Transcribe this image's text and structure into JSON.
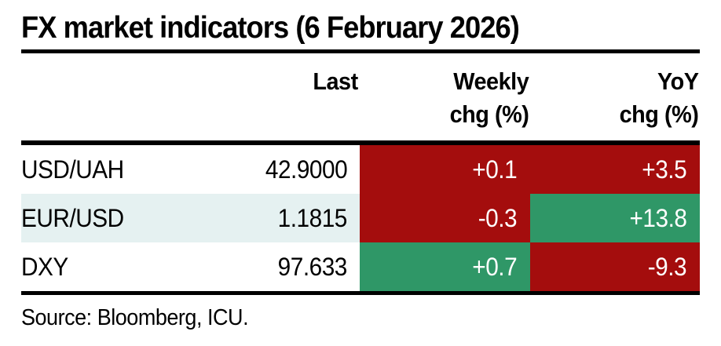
{
  "title": "FX market indicators (6 February 2026)",
  "header": {
    "last": "Last",
    "weekly_line1": "Weekly",
    "weekly_line2": "chg (%)",
    "yoy_line1": "YoY",
    "yoy_line2": "chg (%)"
  },
  "colors": {
    "red": "#A40D0D",
    "green": "#2F9767",
    "stripe": "#E5F1F1",
    "rule": "#000000",
    "text": "#000000",
    "cell_text": "#FFFFFF"
  },
  "chart_data": {
    "type": "table",
    "title": "FX market indicators (6 February 2026)",
    "columns": [
      "Last",
      "Weekly chg (%)",
      "YoY chg (%)"
    ],
    "rows": [
      {
        "indicator": "USD/UAH",
        "last": "42.9000",
        "weekly_chg_pct": "+0.1",
        "weekly_cell_color": "red",
        "yoy_chg_pct": "+3.5",
        "yoy_cell_color": "red"
      },
      {
        "indicator": "EUR/USD",
        "last": "1.1815",
        "weekly_chg_pct": "-0.3",
        "weekly_cell_color": "red",
        "yoy_chg_pct": "+13.8",
        "yoy_cell_color": "green"
      },
      {
        "indicator": "DXY",
        "last": "97.633",
        "weekly_chg_pct": "+0.7",
        "weekly_cell_color": "green",
        "yoy_chg_pct": "-9.3",
        "yoy_cell_color": "red"
      }
    ],
    "source": "Source: Bloomberg, ICU."
  },
  "source": "Source: Bloomberg, ICU."
}
